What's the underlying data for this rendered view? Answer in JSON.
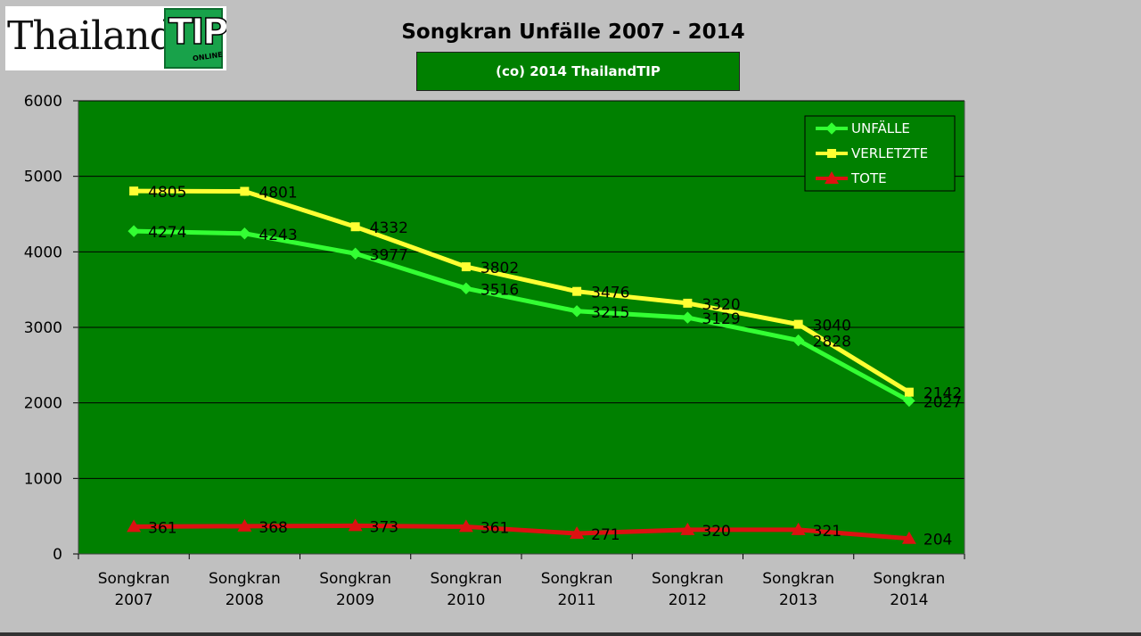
{
  "logo": {
    "word": "Thailand",
    "tip": "TIP",
    "online": "ONLINE"
  },
  "header": {
    "title": "Songkran Unfälle 2007 - 2014",
    "subtitle": "(co) 2014 ThailandTIP"
  },
  "colors": {
    "plot_bg": "#008000",
    "page_bg": "#c0c0c0",
    "unfaelle": "#33ff33",
    "verletzte": "#ffff33",
    "tote": "#dd1111"
  },
  "chart_data": {
    "type": "line",
    "title": "Songkran Unfälle 2007 - 2014",
    "subtitle": "(co) 2014 ThailandTIP",
    "categories": [
      [
        "Songkran",
        "2007"
      ],
      [
        "Songkran",
        "2008"
      ],
      [
        "Songkran",
        "2009"
      ],
      [
        "Songkran",
        "2010"
      ],
      [
        "Songkran",
        "2011"
      ],
      [
        "Songkran",
        "2012"
      ],
      [
        "Songkran",
        "2013"
      ],
      [
        "Songkran",
        "2014"
      ]
    ],
    "ylim": [
      0,
      6000
    ],
    "yticks": [
      0,
      1000,
      2000,
      3000,
      4000,
      5000,
      6000
    ],
    "grid": true,
    "legend_position": "top-right",
    "series": [
      {
        "name": "UNFÄLLE",
        "marker": "diamond",
        "color": "#33ff33",
        "values": [
          4274,
          4243,
          3977,
          3516,
          3215,
          3129,
          2828,
          2027
        ]
      },
      {
        "name": "VERLETZTE",
        "marker": "square",
        "color": "#ffff33",
        "values": [
          4805,
          4801,
          4332,
          3802,
          3476,
          3320,
          3040,
          2142
        ]
      },
      {
        "name": "TOTE",
        "marker": "triangle",
        "color": "#dd1111",
        "values": [
          361,
          368,
          373,
          361,
          271,
          320,
          321,
          204
        ]
      }
    ]
  }
}
